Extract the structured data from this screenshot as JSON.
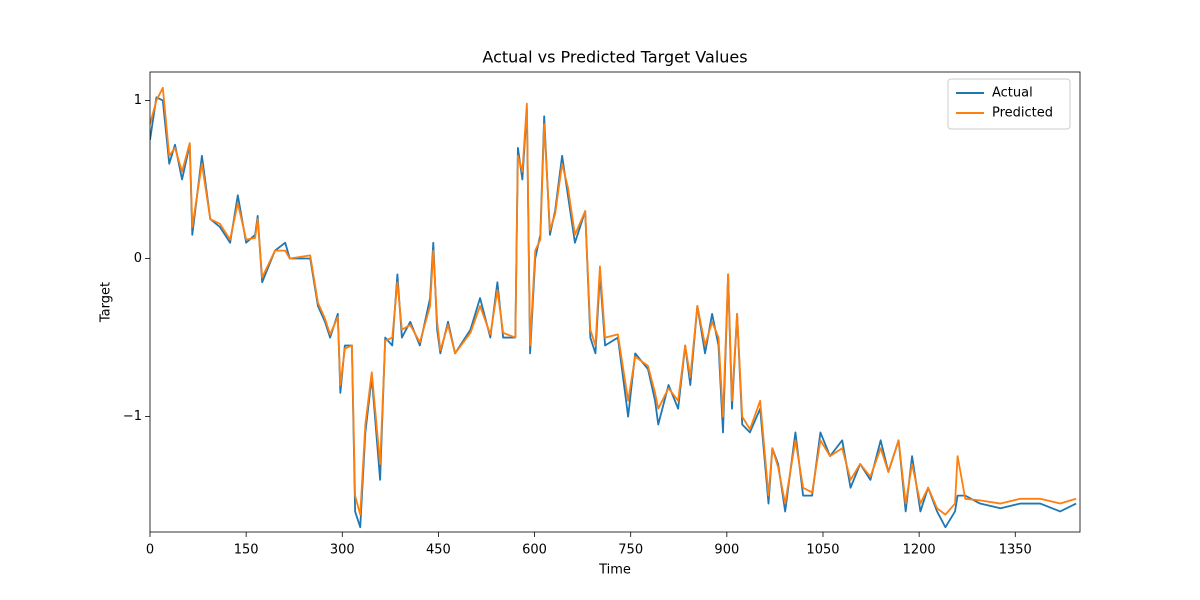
{
  "chart_data": {
    "type": "line",
    "title": "Actual vs Predicted Target Values",
    "x_label": "Time",
    "y_label": "Target",
    "x": [
      0,
      10,
      20,
      30,
      39,
      50,
      62,
      66,
      81,
      94,
      109,
      125,
      137,
      150,
      164,
      168,
      175,
      195,
      211,
      218,
      250,
      262,
      273,
      281,
      293,
      297,
      304,
      315,
      320,
      328,
      336,
      346,
      359,
      367,
      378,
      386,
      393,
      406,
      421,
      437,
      442,
      448,
      453,
      465,
      476,
      500,
      515,
      531,
      542,
      551,
      570,
      574,
      581,
      588,
      593,
      601,
      609,
      615,
      624,
      632,
      643,
      652,
      663,
      679,
      687,
      695,
      702,
      710,
      730,
      746,
      757,
      777,
      788,
      793,
      809,
      824,
      835,
      843,
      854,
      866,
      877,
      887,
      894,
      902,
      908,
      916,
      924,
      936,
      952,
      965,
      971,
      980,
      991,
      1007,
      1019,
      1033,
      1046,
      1061,
      1080,
      1093,
      1108,
      1124,
      1140,
      1152,
      1168,
      1179,
      1189,
      1202,
      1214,
      1228,
      1241,
      1256,
      1260,
      1272,
      1295,
      1327,
      1358,
      1389,
      1420,
      1445
    ],
    "series": [
      {
        "name": "Actual",
        "color": "#1f77b4",
        "values": [
          0.75,
          1.02,
          1.0,
          0.6,
          0.72,
          0.5,
          0.72,
          0.15,
          0.65,
          0.25,
          0.2,
          0.1,
          0.4,
          0.1,
          0.15,
          0.27,
          -0.15,
          0.05,
          0.1,
          0.0,
          0.0,
          -0.3,
          -0.4,
          -0.5,
          -0.35,
          -0.85,
          -0.55,
          -0.55,
          -1.6,
          -1.7,
          -1.1,
          -0.75,
          -1.4,
          -0.5,
          -0.55,
          -0.1,
          -0.5,
          -0.4,
          -0.55,
          -0.25,
          0.1,
          -0.45,
          -0.6,
          -0.4,
          -0.6,
          -0.45,
          -0.25,
          -0.5,
          -0.15,
          -0.5,
          -0.5,
          0.7,
          0.5,
          0.95,
          -0.6,
          0.0,
          0.15,
          0.9,
          0.15,
          0.3,
          0.65,
          0.4,
          0.1,
          0.3,
          -0.5,
          -0.6,
          -0.1,
          -0.55,
          -0.5,
          -1.0,
          -0.6,
          -0.7,
          -0.9,
          -1.05,
          -0.8,
          -0.95,
          -0.55,
          -0.8,
          -0.3,
          -0.6,
          -0.35,
          -0.55,
          -1.1,
          -0.1,
          -0.95,
          -0.35,
          -1.05,
          -1.1,
          -0.95,
          -1.55,
          -1.2,
          -1.3,
          -1.6,
          -1.1,
          -1.5,
          -1.5,
          -1.1,
          -1.25,
          -1.15,
          -1.45,
          -1.3,
          -1.4,
          -1.15,
          -1.35,
          -1.15,
          -1.6,
          -1.25,
          -1.6,
          -1.45,
          -1.6,
          -1.7,
          -1.6,
          -1.5,
          -1.5,
          -1.55,
          -1.58,
          -1.55,
          -1.55,
          -1.6,
          -1.55
        ]
      },
      {
        "name": "Predicted",
        "color": "#ff7f0e",
        "values": [
          0.85,
          1.0,
          1.08,
          0.65,
          0.7,
          0.55,
          0.73,
          0.2,
          0.6,
          0.25,
          0.22,
          0.12,
          0.35,
          0.12,
          0.13,
          0.25,
          -0.12,
          0.05,
          0.05,
          0.0,
          0.02,
          -0.28,
          -0.38,
          -0.48,
          -0.37,
          -0.8,
          -0.57,
          -0.55,
          -1.5,
          -1.62,
          -1.05,
          -0.72,
          -1.3,
          -0.52,
          -0.5,
          -0.15,
          -0.45,
          -0.42,
          -0.53,
          -0.3,
          0.05,
          -0.4,
          -0.58,
          -0.42,
          -0.6,
          -0.47,
          -0.3,
          -0.48,
          -0.2,
          -0.47,
          -0.5,
          0.65,
          0.55,
          0.98,
          -0.55,
          0.05,
          0.12,
          0.85,
          0.18,
          0.28,
          0.6,
          0.45,
          0.15,
          0.3,
          -0.45,
          -0.55,
          -0.05,
          -0.5,
          -0.48,
          -0.9,
          -0.62,
          -0.68,
          -0.85,
          -0.95,
          -0.82,
          -0.9,
          -0.55,
          -0.75,
          -0.3,
          -0.55,
          -0.4,
          -0.5,
          -1.0,
          -0.1,
          -0.9,
          -0.35,
          -1.0,
          -1.08,
          -0.9,
          -1.5,
          -1.2,
          -1.32,
          -1.55,
          -1.15,
          -1.45,
          -1.48,
          -1.15,
          -1.25,
          -1.2,
          -1.4,
          -1.3,
          -1.38,
          -1.2,
          -1.35,
          -1.15,
          -1.55,
          -1.3,
          -1.55,
          -1.45,
          -1.58,
          -1.62,
          -1.55,
          -1.25,
          -1.52,
          -1.53,
          -1.55,
          -1.52,
          -1.52,
          -1.55,
          -1.52
        ]
      }
    ],
    "xlim": [
      0,
      1451
    ],
    "ylim": [
      -1.73,
      1.18
    ],
    "xticks": [
      0,
      150,
      300,
      450,
      600,
      750,
      900,
      1050,
      1200,
      1350
    ],
    "yticks": [
      {
        "value": -1,
        "label": "−1"
      },
      0,
      1
    ],
    "legend": "upper right"
  }
}
